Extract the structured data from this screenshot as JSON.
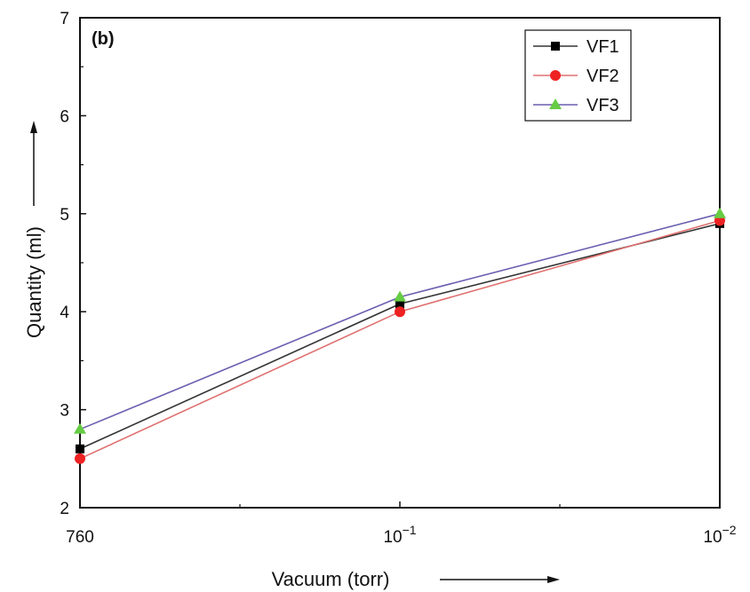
{
  "chart_data": {
    "type": "line",
    "panel_label": "(b)",
    "xlabel": "Vacuum (torr)",
    "ylabel": "Quantity (ml)",
    "categories": [
      "760",
      "10^-1",
      "10^-2"
    ],
    "x_tick_labels": [
      {
        "base": "760",
        "exp": ""
      },
      {
        "base": "10",
        "exp": "−1"
      },
      {
        "base": "10",
        "exp": "−2"
      }
    ],
    "ylim": [
      2,
      7
    ],
    "y_ticks": [
      2,
      3,
      4,
      5,
      6,
      7
    ],
    "grid": false,
    "legend_position": "top-right",
    "series": [
      {
        "name": "VF1",
        "values": [
          2.6,
          4.08,
          4.9
        ],
        "color": "#333333",
        "marker": "square",
        "marker_color": "#000000"
      },
      {
        "name": "VF2",
        "values": [
          2.5,
          4.0,
          4.93
        ],
        "color": "#e07070",
        "marker": "circle",
        "marker_color": "#ee2222"
      },
      {
        "name": "VF3",
        "values": [
          2.8,
          4.15,
          5.0
        ],
        "color": "#6a5fb0",
        "marker": "triangle",
        "marker_color": "#66cc44"
      }
    ]
  }
}
